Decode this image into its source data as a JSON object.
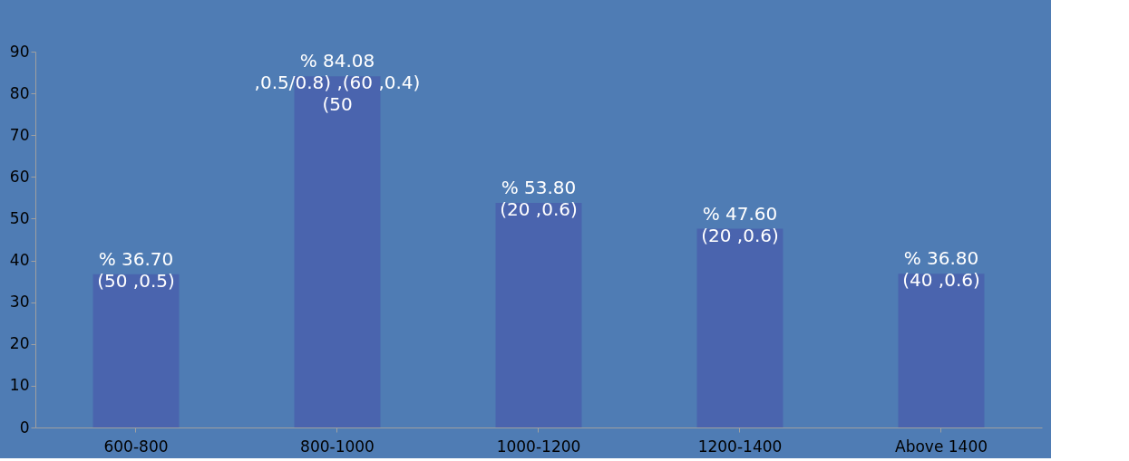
{
  "chart_data": {
    "type": "bar",
    "categories": [
      "600-800",
      "800-1000",
      "1000-1200",
      "1200-1400",
      "Above 1400"
    ],
    "values": [
      36.7,
      84.08,
      53.8,
      47.6,
      36.8
    ],
    "value_labels": [
      "% 36.70\n(50 ,0.5)",
      "% 84.08\n,0.5/0.8) ,(60 ,0.4)\n(50",
      "% 53.80\n(20 ,0.6)",
      "% 47.60\n(20 ,0.6)",
      "% 36.80\n(40 ,0.6)"
    ],
    "color": "#4a64ae",
    "ylim": [
      0,
      90
    ],
    "yticks": [
      0,
      10,
      20,
      30,
      40,
      50,
      60,
      70,
      80,
      90
    ],
    "grid": false
  }
}
